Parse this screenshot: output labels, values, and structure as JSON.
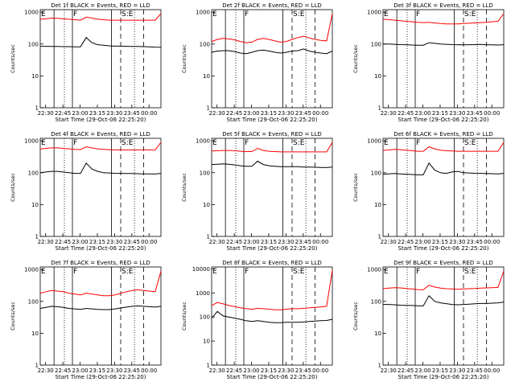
{
  "figure": {
    "ylabel": "Counts/sec",
    "xlabel": "Start Time (29-Oct-06 22:25:20)",
    "x_ticks": [
      "22:30",
      "22:45",
      "23:00",
      "23:15",
      "23:30",
      "23:45",
      "00:00"
    ],
    "y_ticks": [
      "1",
      "10",
      "100",
      "1000"
    ],
    "y_ticks_top8": [
      "1",
      "10",
      "100",
      "1000",
      "10000"
    ],
    "markers": [
      "E",
      "F",
      "S:E"
    ]
  },
  "chart_data": [
    {
      "type": "line",
      "title": "Det 1f BLACK = Events, RED = LLD",
      "ylim": [
        1,
        1200
      ],
      "y_scale": "log",
      "xlim_minutes": [
        0,
        105
      ],
      "series": [
        {
          "color": "#000000",
          "values": [
            85,
            85,
            84,
            84,
            83,
            83,
            82,
            82,
            160,
            110,
            95,
            92,
            88,
            86,
            86,
            85,
            84,
            84,
            83,
            82,
            80,
            79
          ]
        },
        {
          "color": "#ff0000",
          "values": [
            600,
            620,
            650,
            640,
            620,
            600,
            580,
            560,
            700,
            650,
            600,
            580,
            560,
            560,
            560,
            560,
            560,
            560,
            560,
            560,
            560,
            900
          ]
        }
      ]
    },
    {
      "type": "line",
      "title": "Det 2f BLACK = Events, RED = LLD",
      "ylim": [
        1,
        1200
      ],
      "y_scale": "log",
      "xlim_minutes": [
        0,
        105
      ],
      "series": [
        {
          "color": "#000000",
          "values": [
            55,
            60,
            62,
            62,
            58,
            52,
            50,
            55,
            62,
            65,
            60,
            55,
            52,
            55,
            60,
            62,
            70,
            60,
            55,
            52,
            50,
            60
          ]
        },
        {
          "color": "#ff0000",
          "values": [
            120,
            140,
            150,
            145,
            135,
            120,
            110,
            115,
            140,
            150,
            140,
            125,
            115,
            120,
            140,
            160,
            175,
            155,
            140,
            130,
            125,
            900
          ]
        }
      ]
    },
    {
      "type": "line",
      "title": "Det 3f BLACK = Events, RED = LLD",
      "ylim": [
        1,
        1200
      ],
      "y_scale": "log",
      "xlim_minutes": [
        0,
        105
      ],
      "series": [
        {
          "color": "#000000",
          "values": [
            100,
            100,
            98,
            96,
            95,
            93,
            92,
            92,
            110,
            105,
            100,
            98,
            96,
            95,
            94,
            95,
            96,
            97,
            95,
            94,
            93,
            95
          ]
        },
        {
          "color": "#ff0000",
          "values": [
            600,
            580,
            560,
            540,
            520,
            500,
            480,
            470,
            480,
            460,
            440,
            430,
            430,
            430,
            440,
            450,
            460,
            470,
            480,
            500,
            520,
            900
          ]
        }
      ]
    },
    {
      "type": "line",
      "title": "Det 4f BLACK = Events, RED = LLD",
      "ylim": [
        1,
        1200
      ],
      "y_scale": "log",
      "xlim_minutes": [
        0,
        105
      ],
      "series": [
        {
          "color": "#000000",
          "values": [
            100,
            105,
            110,
            110,
            105,
            100,
            95,
            95,
            200,
            130,
            110,
            100,
            98,
            96,
            95,
            94,
            94,
            93,
            92,
            92,
            91,
            95
          ]
        },
        {
          "color": "#ff0000",
          "values": [
            550,
            580,
            600,
            600,
            580,
            560,
            540,
            530,
            650,
            600,
            560,
            540,
            530,
            520,
            520,
            520,
            520,
            520,
            520,
            520,
            520,
            900
          ]
        }
      ]
    },
    {
      "type": "line",
      "title": "Det 5f BLACK = Events, RED = LLD",
      "ylim": [
        1,
        1200
      ],
      "y_scale": "log",
      "xlim_minutes": [
        0,
        105
      ],
      "series": [
        {
          "color": "#000000",
          "values": [
            180,
            185,
            190,
            185,
            175,
            165,
            160,
            160,
            230,
            180,
            165,
            160,
            155,
            155,
            155,
            155,
            150,
            150,
            148,
            146,
            145,
            150
          ]
        },
        {
          "color": "#ff0000",
          "values": [
            480,
            490,
            500,
            500,
            490,
            470,
            460,
            460,
            580,
            500,
            470,
            460,
            450,
            450,
            450,
            450,
            450,
            450,
            450,
            450,
            450,
            900
          ]
        }
      ]
    },
    {
      "type": "line",
      "title": "Det 6f BLACK = Events, RED = LLD",
      "ylim": [
        1,
        1200
      ],
      "y_scale": "log",
      "xlim_minutes": [
        0,
        105
      ],
      "series": [
        {
          "color": "#000000",
          "values": [
            90,
            92,
            94,
            92,
            90,
            88,
            86,
            86,
            200,
            120,
            100,
            95,
            105,
            110,
            100,
            98,
            96,
            95,
            94,
            93,
            92,
            95
          ]
        },
        {
          "color": "#ff0000",
          "values": [
            500,
            520,
            540,
            530,
            510,
            490,
            470,
            470,
            650,
            560,
            510,
            490,
            480,
            470,
            470,
            470,
            470,
            470,
            470,
            470,
            470,
            900
          ]
        }
      ]
    },
    {
      "type": "line",
      "title": "Det 7f BLACK = Events, RED = LLD",
      "ylim": [
        1,
        1200
      ],
      "y_scale": "log",
      "xlim_minutes": [
        0,
        105
      ],
      "series": [
        {
          "color": "#000000",
          "values": [
            60,
            65,
            70,
            68,
            65,
            60,
            58,
            56,
            60,
            58,
            56,
            55,
            55,
            58,
            62,
            66,
            70,
            72,
            70,
            68,
            66,
            70
          ]
        },
        {
          "color": "#ff0000",
          "values": [
            180,
            200,
            220,
            210,
            200,
            180,
            170,
            160,
            180,
            170,
            160,
            150,
            150,
            160,
            180,
            200,
            220,
            230,
            220,
            210,
            200,
            900
          ]
        }
      ]
    },
    {
      "type": "line",
      "title": "Det 8f BLACK = Events, RED = LLD",
      "ylim": [
        1,
        12000
      ],
      "y_scale": "log",
      "xlim_minutes": [
        0,
        105
      ],
      "series": [
        {
          "color": "#000000",
          "values": [
            90,
            170,
            110,
            100,
            90,
            80,
            70,
            65,
            70,
            65,
            60,
            58,
            58,
            60,
            60,
            60,
            62,
            65,
            68,
            70,
            72,
            80
          ]
        },
        {
          "color": "#ff0000",
          "values": [
            300,
            400,
            350,
            300,
            270,
            240,
            220,
            210,
            230,
            220,
            210,
            200,
            200,
            210,
            220,
            220,
            230,
            240,
            250,
            260,
            280,
            9000
          ]
        }
      ]
    },
    {
      "type": "line",
      "title": "Det 9f BLACK = Events, RED = LLD",
      "ylim": [
        1,
        1200
      ],
      "y_scale": "log",
      "xlim_minutes": [
        0,
        105
      ],
      "series": [
        {
          "color": "#000000",
          "values": [
            80,
            80,
            78,
            76,
            75,
            74,
            73,
            72,
            150,
            100,
            90,
            85,
            80,
            78,
            80,
            82,
            84,
            86,
            86,
            88,
            90,
            95
          ]
        },
        {
          "color": "#ff0000",
          "values": [
            250,
            260,
            270,
            265,
            255,
            245,
            235,
            230,
            320,
            280,
            260,
            250,
            245,
            240,
            245,
            250,
            255,
            260,
            265,
            270,
            275,
            900
          ]
        }
      ]
    }
  ]
}
